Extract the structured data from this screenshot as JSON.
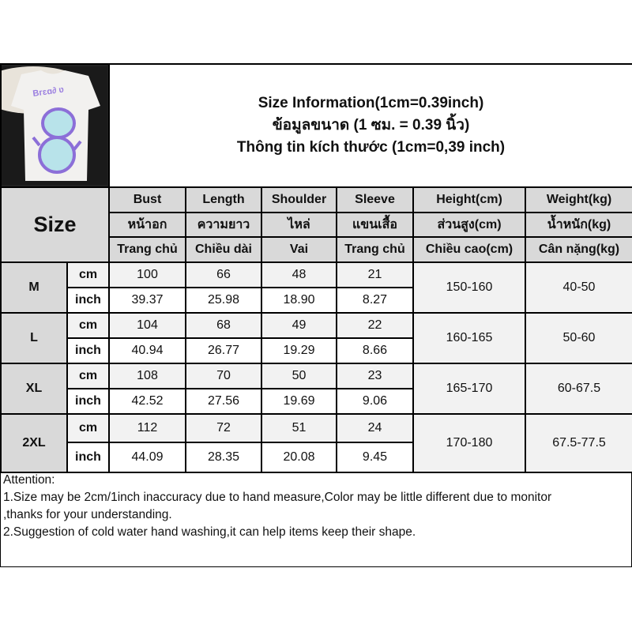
{
  "header": {
    "title_en": "Size Information(1cm=0.39inch)",
    "title_th": "ข้อมูลขนาด (1 ซม. = 0.39 นิ้ว)",
    "title_vi": "Thông tin kích thước (1cm=0,39 inch)"
  },
  "size_label": "Size",
  "columns": [
    {
      "en": "Bust",
      "th": "หน้าอก",
      "vi": "Trang chủ"
    },
    {
      "en": "Length",
      "th": "ความยาว",
      "vi": "Chiều dài"
    },
    {
      "en": "Shoulder",
      "th": "ไหล่",
      "vi": "Vai"
    },
    {
      "en": "Sleeve",
      "th": "แขนเสื้อ",
      "vi": "Trang chủ"
    },
    {
      "en": "Height(cm)",
      "th": "ส่วนสูง(cm)",
      "vi": "Chiều cao(cm)"
    },
    {
      "en": "Weight(kg)",
      "th": "น้ำหนัก(kg)",
      "vi": "Cân nặng(kg)"
    }
  ],
  "units": {
    "cm": "cm",
    "inch": "inch"
  },
  "rows": [
    {
      "size": "M",
      "cm": [
        "100",
        "66",
        "48",
        "21"
      ],
      "inch": [
        "39.37",
        "25.98",
        "18.90",
        "8.27"
      ],
      "height": "150-160",
      "weight": "40-50"
    },
    {
      "size": "L",
      "cm": [
        "104",
        "68",
        "49",
        "22"
      ],
      "inch": [
        "40.94",
        "26.77",
        "19.29",
        "8.66"
      ],
      "height": "160-165",
      "weight": "50-60"
    },
    {
      "size": "XL",
      "cm": [
        "108",
        "70",
        "50",
        "23"
      ],
      "inch": [
        "42.52",
        "27.56",
        "19.69",
        "9.06"
      ],
      "height": "165-170",
      "weight": "60-67.5"
    },
    {
      "size": "2XL",
      "cm": [
        "112",
        "72",
        "51",
        "24"
      ],
      "inch": [
        "44.09",
        "28.35",
        "20.08",
        "9.45"
      ],
      "height": "170-180",
      "weight": "67.5-77.5"
    }
  ],
  "attention": [
    "Attention:",
    "1.Size may be 2cm/1inch inaccuracy due to hand measure,Color may be little different due to monitor",
    ",thanks for your understanding.",
    "2.Suggestion of cold water hand washing,it can help items keep their shape."
  ],
  "colors": {
    "header_bg": "#d9d9d9",
    "cm_row_bg": "#f2f2f2",
    "print_purple": "#9b7fe0"
  }
}
